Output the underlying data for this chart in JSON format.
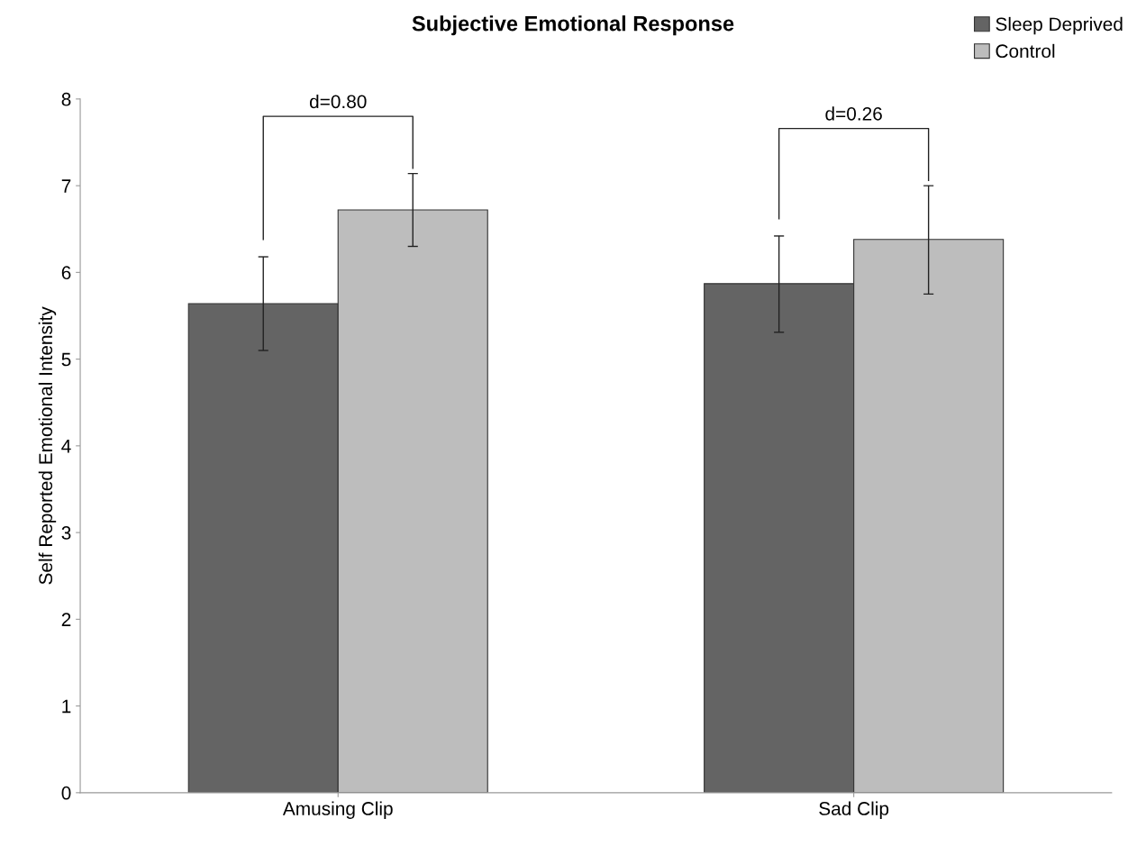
{
  "chart_data": {
    "type": "bar",
    "title": "Subjective Emotional Response",
    "ylabel": "Self Reported Emotional Intensity",
    "categories": [
      "Amusing Clip",
      "Sad Clip"
    ],
    "series": [
      {
        "name": "Sleep Deprived",
        "color": "#646464",
        "values": [
          5.64,
          5.87
        ],
        "errors": [
          [
            5.1,
            6.18
          ],
          [
            5.31,
            6.42
          ]
        ]
      },
      {
        "name": "Control",
        "color": "#bdbdbd",
        "values": [
          6.72,
          6.38
        ],
        "errors": [
          [
            6.3,
            7.14
          ],
          [
            5.75,
            7.0
          ]
        ]
      }
    ],
    "annotations": [
      "d=0.80",
      "d=0.26"
    ],
    "ylim": [
      0,
      8
    ],
    "yticks": [
      0,
      1,
      2,
      3,
      4,
      5,
      6,
      7,
      8
    ],
    "grid": false,
    "legend": "top right"
  }
}
